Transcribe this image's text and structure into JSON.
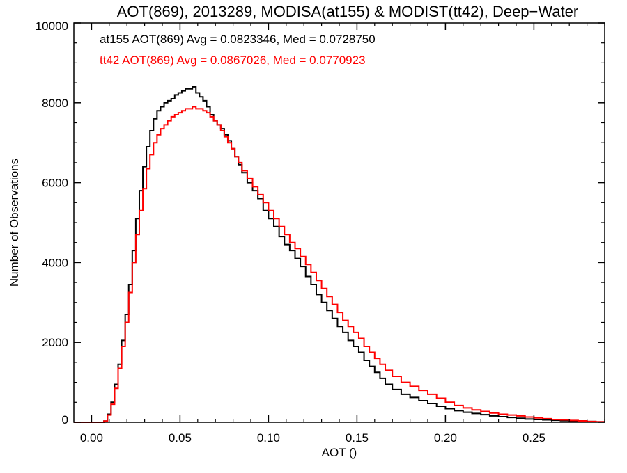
{
  "chart_data": {
    "type": "line",
    "title": "AOT(869), 2013289, MODISA(at155) & MODIST(tt42), Deep−Water",
    "xlabel": "AOT ()",
    "ylabel": "Number of Observations",
    "xlim": [
      -0.01,
      0.29
    ],
    "ylim": [
      0,
      10000
    ],
    "grid": false,
    "step": true,
    "legend_placement": "top-left",
    "x_ticks": [
      0.0,
      0.05,
      0.1,
      0.15,
      0.2,
      0.25
    ],
    "x_tick_labels": [
      "0.00",
      "0.05",
      "0.10",
      "0.15",
      "0.20",
      "0.25"
    ],
    "y_ticks": [
      0,
      2000,
      4000,
      6000,
      8000,
      10000
    ],
    "y_tick_labels": [
      "0",
      "2000",
      "4000",
      "6000",
      "8000",
      "10000"
    ],
    "x": [
      -0.01,
      -0.005,
      0.0,
      0.003,
      0.005,
      0.007,
      0.009,
      0.011,
      0.013,
      0.015,
      0.017,
      0.019,
      0.021,
      0.023,
      0.025,
      0.027,
      0.029,
      0.031,
      0.033,
      0.035,
      0.037,
      0.039,
      0.041,
      0.043,
      0.045,
      0.047,
      0.049,
      0.051,
      0.053,
      0.055,
      0.057,
      0.059,
      0.061,
      0.063,
      0.065,
      0.067,
      0.069,
      0.071,
      0.073,
      0.075,
      0.077,
      0.079,
      0.081,
      0.083,
      0.085,
      0.088,
      0.091,
      0.094,
      0.097,
      0.1,
      0.103,
      0.106,
      0.109,
      0.112,
      0.115,
      0.118,
      0.121,
      0.124,
      0.127,
      0.13,
      0.133,
      0.136,
      0.139,
      0.142,
      0.145,
      0.148,
      0.151,
      0.154,
      0.157,
      0.16,
      0.163,
      0.166,
      0.17,
      0.175,
      0.18,
      0.185,
      0.19,
      0.195,
      0.2,
      0.205,
      0.21,
      0.215,
      0.22,
      0.225,
      0.23,
      0.235,
      0.24,
      0.245,
      0.25,
      0.255,
      0.26,
      0.265,
      0.27,
      0.275,
      0.28,
      0.285,
      0.29
    ],
    "series": [
      {
        "name": "at155",
        "color": "#000000",
        "values": [
          0,
          0,
          0,
          0,
          0,
          30,
          200,
          500,
          950,
          1450,
          2050,
          2700,
          3450,
          4300,
          5100,
          5800,
          6400,
          6900,
          7300,
          7600,
          7800,
          7900,
          8000,
          8050,
          8100,
          8200,
          8250,
          8300,
          8350,
          8350,
          8400,
          8250,
          8150,
          8050,
          7900,
          7700,
          7550,
          7450,
          7350,
          7200,
          7050,
          6850,
          6650,
          6450,
          6250,
          6000,
          5800,
          5600,
          5300,
          5100,
          4900,
          4650,
          4450,
          4300,
          4100,
          3900,
          3650,
          3450,
          3200,
          3000,
          2800,
          2600,
          2400,
          2250,
          2050,
          1900,
          1750,
          1550,
          1400,
          1250,
          1100,
          950,
          820,
          700,
          620,
          540,
          470,
          400,
          340,
          290,
          250,
          220,
          190,
          160,
          140,
          120,
          100,
          80,
          70,
          60,
          50,
          40,
          30,
          25,
          20,
          10,
          0
        ]
      },
      {
        "name": "tt42",
        "color": "#ff0000",
        "values": [
          0,
          0,
          0,
          0,
          0,
          30,
          180,
          450,
          850,
          1350,
          1900,
          2500,
          3250,
          4000,
          4700,
          5300,
          5850,
          6350,
          6700,
          7000,
          7200,
          7350,
          7450,
          7550,
          7650,
          7700,
          7750,
          7800,
          7850,
          7850,
          7900,
          7850,
          7850,
          7800,
          7750,
          7650,
          7550,
          7450,
          7300,
          7150,
          7000,
          6850,
          6650,
          6500,
          6300,
          6100,
          5900,
          5700,
          5500,
          5300,
          5100,
          4900,
          4700,
          4500,
          4350,
          4150,
          3950,
          3750,
          3550,
          3350,
          3150,
          2950,
          2750,
          2550,
          2400,
          2250,
          2100,
          1900,
          1750,
          1600,
          1450,
          1300,
          1150,
          1000,
          900,
          800,
          700,
          600,
          500,
          420,
          360,
          310,
          270,
          230,
          200,
          180,
          160,
          130,
          110,
          90,
          70,
          60,
          45,
          35,
          20,
          10,
          0
        ]
      }
    ],
    "annotations": [
      {
        "text": "at155 AOT(869) Avg = 0.0823346, Med = 0.0728750",
        "color": "#000000"
      },
      {
        "text": "tt42 AOT(869) Avg = 0.0867026, Med = 0.0770923",
        "color": "#ff0000"
      }
    ]
  }
}
